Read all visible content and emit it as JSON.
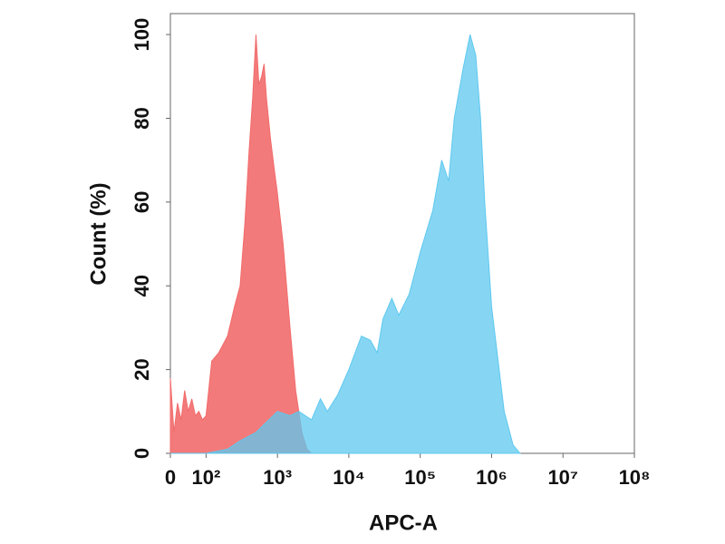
{
  "chart_data": {
    "type": "histogram",
    "xlabel": "APC-A",
    "ylabel": "Count  (%)",
    "xscale": "biexponential",
    "xlim": [
      0,
      100000000
    ],
    "xticks": [
      0,
      {
        "value": 100,
        "label": "10²"
      },
      {
        "value": 1000,
        "label": "10³"
      },
      {
        "value": 10000,
        "label": "10⁴"
      },
      {
        "value": 100000,
        "label": "10⁵"
      },
      {
        "value": 1000000,
        "label": "10⁶"
      },
      {
        "value": 10000000,
        "label": "10⁷"
      },
      {
        "value": 100000000,
        "label": "10⁸"
      }
    ],
    "ylim": [
      0,
      105
    ],
    "yticks": [
      0,
      20,
      40,
      60,
      80,
      100
    ],
    "series": [
      {
        "color": "#f26b6b",
        "x": [
          0,
          10,
          20,
          30,
          40,
          50,
          60,
          70,
          80,
          90,
          100,
          120,
          150,
          200,
          250,
          300,
          350,
          400,
          450,
          500,
          550,
          600,
          650,
          700,
          800,
          900,
          1000,
          1200,
          1500,
          1800,
          2200,
          2600,
          3000
        ],
        "values": [
          18,
          5,
          12,
          8,
          15,
          10,
          13,
          9,
          10,
          8,
          9,
          22,
          24,
          28,
          35,
          40,
          55,
          72,
          85,
          100,
          88,
          90,
          93,
          85,
          75,
          68,
          62,
          50,
          30,
          15,
          5,
          1,
          0
        ]
      },
      {
        "color": "#5ec8ef",
        "x": [
          0,
          100,
          200,
          300,
          500,
          1000,
          1500,
          2000,
          3000,
          4000,
          5000,
          7000,
          10000,
          15000,
          20000,
          25000,
          30000,
          40000,
          50000,
          70000,
          100000,
          150000,
          200000,
          250000,
          300000,
          400000,
          500000,
          600000,
          700000,
          800000,
          1000000,
          1500000,
          2000000,
          2500000
        ],
        "values": [
          0,
          0,
          1,
          3,
          5,
          10,
          9,
          10,
          8,
          13,
          10,
          14,
          20,
          28,
          27,
          24,
          32,
          37,
          33,
          38,
          48,
          58,
          70,
          65,
          80,
          92,
          100,
          95,
          80,
          60,
          35,
          10,
          2,
          0
        ]
      }
    ]
  }
}
